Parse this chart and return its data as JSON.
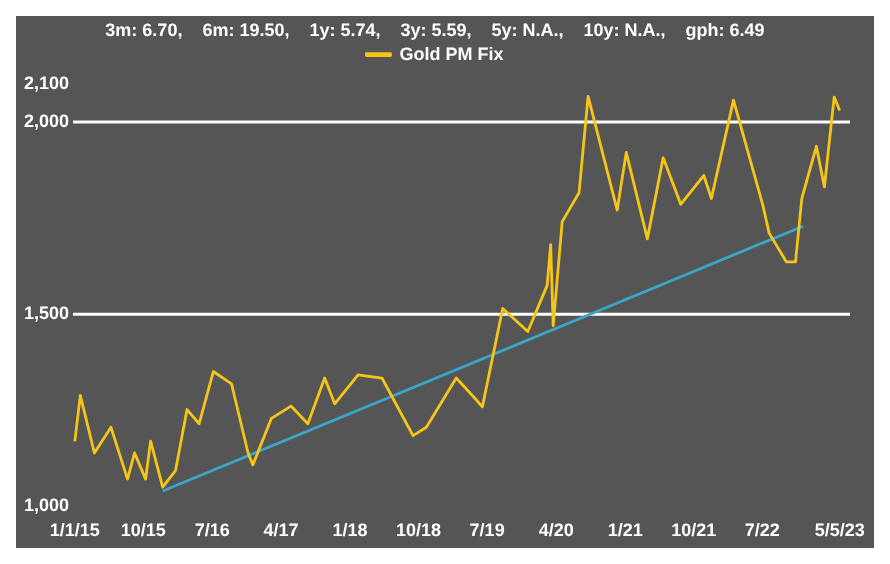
{
  "chart_data": {
    "type": "line",
    "title": "3m: 6.70,    6m: 19.50,    1y: 5.74,    3y: 5.59,    5y: N.A.,    10y: N.A.,    gph: 6.49",
    "x": [
      "2015-01-01",
      "2015-01-23",
      "2015-03-20",
      "2015-05-25",
      "2015-07-30",
      "2015-08-27",
      "2015-10-10",
      "2015-10-30",
      "2015-12-17",
      "2016-02-06",
      "2016-03-23",
      "2016-05-10",
      "2016-07-06",
      "2016-09-16",
      "2016-11-21",
      "2016-12-10",
      "2017-02-22",
      "2017-05-11",
      "2017-07-17",
      "2017-09-22",
      "2017-11-01",
      "2018-02-02",
      "2018-05-08",
      "2018-09-09",
      "2018-11-01",
      "2019-02-28",
      "2019-05-15",
      "2019-06-12",
      "2019-09-01",
      "2019-12-10",
      "2020-02-25",
      "2020-03-10",
      "2020-03-20",
      "2020-04-25",
      "2020-07-01",
      "2020-08-06",
      "2020-11-30",
      "2021-01-05",
      "2021-03-30",
      "2021-06-01",
      "2021-08-10",
      "2021-11-10",
      "2021-12-10",
      "2022-03-08",
      "2022-07-02",
      "2022-07-28",
      "2022-10-05",
      "2022-11-10",
      "2022-12-05",
      "2023-02-01",
      "2023-03-05",
      "2023-04-13",
      "2023-05-05"
    ],
    "series": [
      {
        "name": "Gold PM Fix",
        "color": "#f5c518",
        "values": [
          1169,
          1289,
          1139,
          1206,
          1071,
          1139,
          1071,
          1170,
          1050,
          1093,
          1252,
          1215,
          1351,
          1319,
          1139,
          1108,
          1229,
          1261,
          1215,
          1334,
          1267,
          1342,
          1334,
          1184,
          1206,
          1334,
          1280,
          1259,
          1515,
          1455,
          1575,
          1681,
          1470,
          1741,
          1816,
          2067,
          1771,
          1921,
          1696,
          1907,
          1786,
          1861,
          1801,
          2057,
          1786,
          1711,
          1636,
          1636,
          1801,
          1937,
          1831,
          2065,
          2030
        ]
      },
      {
        "type": "line",
        "color": "#3aa6c8",
        "x": [
          "2015-12-17",
          "2022-12-10"
        ],
        "values": [
          1040,
          1729
        ]
      }
    ],
    "xlim": [
      "2014-12-25",
      "2023-06-15"
    ],
    "xticks": [
      {
        "value": "2015-01-01",
        "label": "1/1/15"
      },
      {
        "value": "2015-10-01",
        "label": "10/15"
      },
      {
        "value": "2016-07-01",
        "label": "7/16"
      },
      {
        "value": "2017-04-01",
        "label": "4/17"
      },
      {
        "value": "2018-01-01",
        "label": "1/18"
      },
      {
        "value": "2018-10-01",
        "label": "10/18"
      },
      {
        "value": "2019-07-01",
        "label": "7/19"
      },
      {
        "value": "2020-04-01",
        "label": "4/20"
      },
      {
        "value": "2021-01-01",
        "label": "1/21"
      },
      {
        "value": "2021-10-01",
        "label": "10/21"
      },
      {
        "value": "2022-07-01",
        "label": "7/22"
      },
      {
        "value": "2023-05-05",
        "label": "5/5/23"
      }
    ],
    "ylim": [
      1000,
      2100
    ],
    "yticks": [
      {
        "value": 1000,
        "label": "1,000"
      },
      {
        "value": 1500,
        "label": "1,500"
      },
      {
        "value": 2000,
        "label": "2,000"
      },
      {
        "value": 2100,
        "label": "2,100"
      }
    ],
    "ref_lines": [
      {
        "axis": "y",
        "value": 1500,
        "color": "#ffffff"
      },
      {
        "axis": "y",
        "value": 2000,
        "color": "#ffffff"
      }
    ],
    "legend": "top",
    "grid": false,
    "marker": "none",
    "line_style": "solid"
  }
}
